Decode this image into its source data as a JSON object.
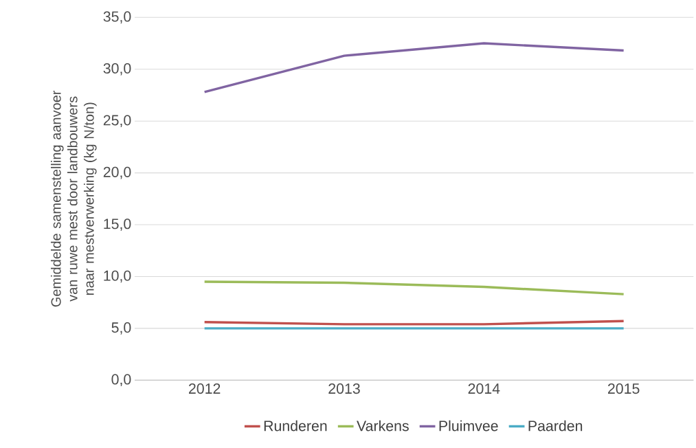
{
  "chart_data": {
    "type": "line",
    "ylabel": "Gemiddelde samenstelling aanvoer van ruwe mest door landbouwers naar mestverwerking (kg N/ton)",
    "categories": [
      "2012",
      "2013",
      "2014",
      "2015"
    ],
    "series": [
      {
        "name": "Runderen",
        "color": "#c0504d",
        "values": [
          5.6,
          5.4,
          5.4,
          5.7
        ]
      },
      {
        "name": "Varkens",
        "color": "#9bbb59",
        "values": [
          9.5,
          9.4,
          9.0,
          8.3
        ]
      },
      {
        "name": "Pluimvee",
        "color": "#8064a2",
        "values": [
          27.8,
          31.3,
          32.5,
          31.8
        ]
      },
      {
        "name": "Paarden",
        "color": "#4bacc6",
        "values": [
          5.0,
          5.0,
          5.0,
          5.0
        ]
      }
    ],
    "ylim": [
      0,
      35
    ],
    "yticks": [
      {
        "value": 0,
        "label": "0,0"
      },
      {
        "value": 5,
        "label": "5,0"
      },
      {
        "value": 10,
        "label": "10,0"
      },
      {
        "value": 15,
        "label": "15,0"
      },
      {
        "value": 20,
        "label": "20,0"
      },
      {
        "value": 25,
        "label": "25,0"
      },
      {
        "value": 30,
        "label": "30,0"
      },
      {
        "value": 35,
        "label": "35,0"
      }
    ],
    "grid": "y",
    "legend": "bottom",
    "marker": "none",
    "line_style": "solid"
  }
}
